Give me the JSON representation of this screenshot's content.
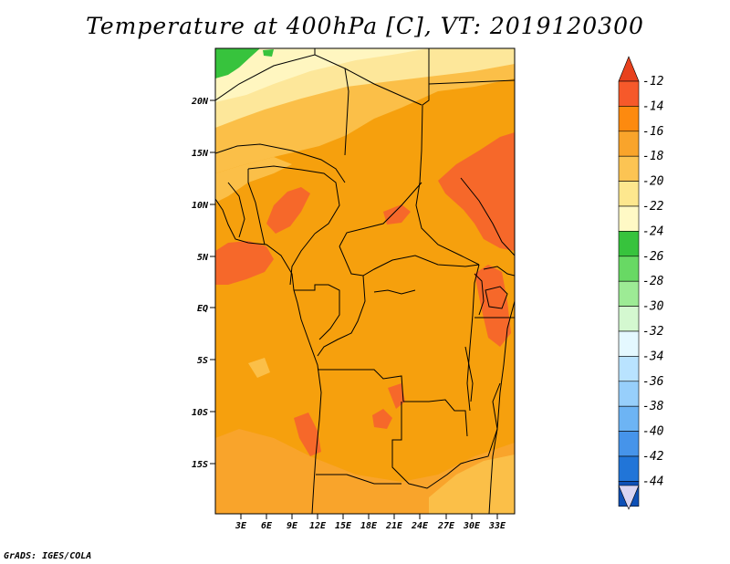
{
  "title": "Temperature at 400hPa [C], VT: 2019120300",
  "credit": "GrADS: IGES/COLA",
  "map": {
    "lon_range": [
      0,
      35
    ],
    "lat_range": [
      -20,
      25
    ],
    "lat_ticks": [
      "20N",
      "15N",
      "10N",
      "5N",
      "EQ",
      "5S",
      "10S",
      "15S"
    ],
    "lon_ticks": [
      "3E",
      "6E",
      "9E",
      "12E",
      "15E",
      "18E",
      "21E",
      "24E",
      "27E",
      "30E",
      "33E"
    ]
  },
  "colorbar": {
    "levels": [
      "-12",
      "-14",
      "-16",
      "-18",
      "-20",
      "-22",
      "-24",
      "-26",
      "-28",
      "-30",
      "-32",
      "-34",
      "-36",
      "-38",
      "-40",
      "-42",
      "-44"
    ],
    "colors": [
      "#f6592a",
      "#fd8a0f",
      "#f9a42b",
      "#fcc453",
      "#fde78e",
      "#fff9c5",
      "#37c33d",
      "#68d964",
      "#9deb95",
      "#d4f8d0",
      "#e4f8ff",
      "#b9e3ff",
      "#97cffb",
      "#6db4f4",
      "#4694ea",
      "#2175d8",
      "#0e50b6",
      "#061f85"
    ],
    "top_arrow_color": "#e8411d",
    "bottom_arrow_color": "#d8d4f2"
  },
  "shading": {
    "base_color": "#f6a00d",
    "colors": {
      "green": "#37c33d",
      "pale_yellow": "#fff6c0",
      "light_yellow": "#fde79a",
      "light_orange": "#fbbf48",
      "mid_orange": "#f9a42b",
      "base_orange": "#f6a00d",
      "dark_orange": "#f6682a"
    }
  }
}
